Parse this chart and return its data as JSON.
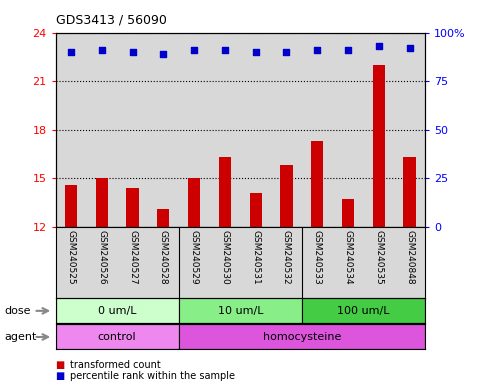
{
  "title": "GDS3413 / 56090",
  "samples": [
    "GSM240525",
    "GSM240526",
    "GSM240527",
    "GSM240528",
    "GSM240529",
    "GSM240530",
    "GSM240531",
    "GSM240532",
    "GSM240533",
    "GSM240534",
    "GSM240535",
    "GSM240848"
  ],
  "transformed_count": [
    14.6,
    15.0,
    14.4,
    13.1,
    15.0,
    16.3,
    14.1,
    15.8,
    17.3,
    13.7,
    22.0,
    16.3
  ],
  "percentile_rank": [
    90,
    91,
    90,
    89,
    91,
    91,
    90,
    90,
    91,
    91,
    93,
    92
  ],
  "bar_color": "#cc0000",
  "dot_color": "#0000cc",
  "ylim_left": [
    12,
    24
  ],
  "ylim_right": [
    0,
    100
  ],
  "yticks_left": [
    12,
    15,
    18,
    21,
    24
  ],
  "yticks_right": [
    0,
    25,
    50,
    75,
    100
  ],
  "ytick_labels_right": [
    "0",
    "25",
    "50",
    "75",
    "100%"
  ],
  "dose_groups": [
    {
      "label": "0 um/L",
      "start": 0,
      "end": 4,
      "color": "#ccffcc"
    },
    {
      "label": "10 um/L",
      "start": 4,
      "end": 8,
      "color": "#88ee88"
    },
    {
      "label": "100 um/L",
      "start": 8,
      "end": 12,
      "color": "#44cc44"
    }
  ],
  "agent_groups": [
    {
      "label": "control",
      "start": 0,
      "end": 4,
      "color": "#ee88ee"
    },
    {
      "label": "homocysteine",
      "start": 4,
      "end": 12,
      "color": "#dd55dd"
    }
  ],
  "legend_bar_label": "transformed count",
  "legend_dot_label": "percentile rank within the sample",
  "xlabel_dose": "dose",
  "xlabel_agent": "agent",
  "background_color": "#ffffff",
  "plot_bg_color": "#d8d8d8"
}
